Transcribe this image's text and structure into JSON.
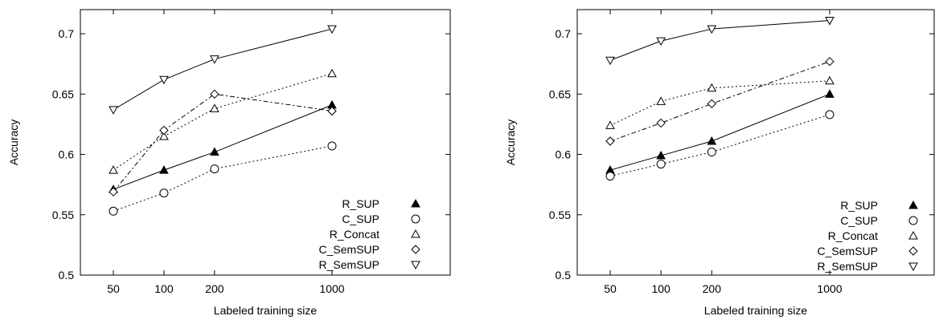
{
  "chart_data": [
    {
      "type": "line",
      "xlabel": "Labeled training size",
      "ylabel": "Accuracy",
      "x": [
        50,
        100,
        200,
        1000
      ],
      "x_tick_labels": [
        "50",
        "100",
        "200",
        "1000"
      ],
      "y_ticks": [
        "0.5",
        "0.55",
        "0.6",
        "0.65",
        "0.7"
      ],
      "ylim": [
        0.5,
        0.72
      ],
      "xscale": "log",
      "grid": false,
      "legend_position": "bottom-right",
      "series": [
        {
          "name": "R_SUP",
          "marker": "triangle-filled",
          "line": "solid",
          "values": [
            0.571,
            0.587,
            0.602,
            0.641
          ]
        },
        {
          "name": "C_SUP",
          "marker": "circle",
          "line": "dotted",
          "values": [
            0.553,
            0.568,
            0.588,
            0.607
          ]
        },
        {
          "name": "R_Concat",
          "marker": "triangle-up",
          "line": "dotted",
          "values": [
            0.587,
            0.615,
            0.638,
            0.667
          ]
        },
        {
          "name": "C_SemSUP",
          "marker": "diamond",
          "line": "dashdot",
          "values": [
            0.569,
            0.62,
            0.65,
            0.636
          ]
        },
        {
          "name": "R_SemSUP",
          "marker": "triangle-down",
          "line": "solid",
          "values": [
            0.637,
            0.662,
            0.679,
            0.704
          ]
        }
      ]
    },
    {
      "type": "line",
      "xlabel": "Labeled training size",
      "ylabel": "Accuracy",
      "x": [
        50,
        100,
        200,
        1000
      ],
      "x_tick_labels": [
        "50",
        "100",
        "200",
        "1000"
      ],
      "y_ticks": [
        "0.5",
        "0.55",
        "0.6",
        "0.65",
        "0.7"
      ],
      "ylim": [
        0.5,
        0.72
      ],
      "xscale": "log",
      "grid": false,
      "legend_position": "bottom-right",
      "series": [
        {
          "name": "R_SUP",
          "marker": "triangle-filled",
          "line": "solid",
          "values": [
            0.587,
            0.599,
            0.611,
            0.65
          ]
        },
        {
          "name": "C_SUP",
          "marker": "circle",
          "line": "dotted",
          "values": [
            0.582,
            0.592,
            0.602,
            0.633
          ]
        },
        {
          "name": "R_Concat",
          "marker": "triangle-up",
          "line": "dotted",
          "values": [
            0.624,
            0.644,
            0.655,
            0.661
          ]
        },
        {
          "name": "C_SemSUP",
          "marker": "diamond",
          "line": "dashdot",
          "values": [
            0.611,
            0.626,
            0.642,
            0.677
          ]
        },
        {
          "name": "R_SemSUP",
          "marker": "triangle-down",
          "line": "solid",
          "values": [
            0.678,
            0.694,
            0.704,
            0.711
          ]
        }
      ]
    }
  ]
}
